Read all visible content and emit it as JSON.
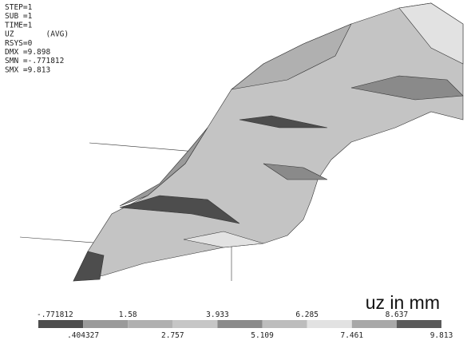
{
  "info": [
    "STEP=1",
    "SUB =1",
    "TIME=1",
    "UZ       (AVG)",
    "RSYS=0",
    "DMX =9.898",
    "SMN =-.771812",
    "SMX =9.813"
  ],
  "unit_title": "uz in mm",
  "legend": {
    "labels": [
      "-.771812",
      ".404327",
      "1.58",
      "2.757",
      "3.933",
      "5.109",
      "6.285",
      "7.461",
      "8.637",
      "9.813"
    ],
    "colors": [
      "#4d4d4d",
      "#9a9a9a",
      "#b0b0b0",
      "#c6c6c6",
      "#8a8a8a",
      "#bdbdbd",
      "#e2e2e2",
      "#a8a8a8",
      "#5a5a5a"
    ]
  }
}
